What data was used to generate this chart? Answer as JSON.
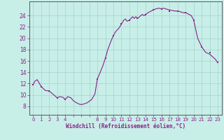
{
  "title": "Windchill (Refroidissement éolien,°C)",
  "bg_color": "#c8eee8",
  "grid_color": "#a8d8d0",
  "line_color": "#882288",
  "marker_color": "#882288",
  "tick_color": "#882288",
  "ylim": [
    6.5,
    26.5
  ],
  "yticks": [
    8,
    10,
    12,
    14,
    16,
    18,
    20,
    22,
    24
  ],
  "xtick_labels": [
    "0",
    "1",
    "2",
    "3",
    "4",
    "",
    "",
    "",
    "8",
    "9",
    "10",
    "11",
    "12",
    "13",
    "14",
    "15",
    "16",
    "17",
    "18",
    "19",
    "20",
    "21",
    "22",
    "23"
  ],
  "detailed_hours": [
    0,
    0.2,
    0.5,
    1,
    1.5,
    2,
    2.5,
    3,
    3.3,
    3.7,
    4,
    4.3,
    4.7,
    5,
    5.3,
    5.7,
    6,
    6.3,
    6.7,
    7,
    7.3,
    7.7,
    8,
    8.3,
    8.7,
    9,
    9.3,
    9.7,
    10,
    10.3,
    10.7,
    11,
    11.3,
    11.5,
    11.7,
    12,
    12.2,
    12.4,
    12.6,
    12.8,
    13,
    13.2,
    13.4,
    13.6,
    13.8,
    14,
    14.3,
    14.7,
    15,
    15.3,
    15.7,
    16,
    16.3,
    16.7,
    17,
    17.3,
    17.7,
    18,
    18.3,
    18.7,
    19,
    19.3,
    19.7,
    20,
    20.5,
    21,
    21.5,
    22,
    22.3,
    22.7,
    23
  ],
  "detailed_values": [
    11.8,
    12.4,
    12.7,
    11.5,
    10.8,
    10.7,
    10.1,
    9.5,
    9.7,
    9.6,
    9.2,
    9.7,
    9.5,
    9.0,
    8.7,
    8.4,
    8.3,
    8.4,
    8.6,
    8.9,
    9.2,
    10.2,
    12.8,
    13.8,
    15.2,
    16.5,
    18.0,
    19.5,
    20.5,
    21.2,
    21.8,
    22.5,
    23.2,
    23.4,
    23.0,
    23.2,
    23.5,
    23.8,
    23.5,
    23.8,
    23.5,
    23.7,
    24.0,
    24.2,
    24.0,
    24.2,
    24.5,
    24.8,
    25.0,
    25.2,
    25.3,
    25.2,
    25.3,
    25.1,
    25.0,
    24.9,
    24.8,
    24.8,
    24.7,
    24.5,
    24.5,
    24.3,
    24.0,
    23.2,
    20.0,
    18.5,
    17.5,
    17.2,
    16.8,
    16.3,
    15.7
  ],
  "marker_hours": [
    0,
    1,
    2,
    3,
    4,
    8,
    9,
    10,
    11,
    12,
    13,
    14,
    15,
    16,
    17,
    18,
    19,
    20,
    21,
    22,
    23
  ],
  "marker_values": [
    11.8,
    11.5,
    10.7,
    9.5,
    9.2,
    12.8,
    16.5,
    20.5,
    22.5,
    23.2,
    23.5,
    24.2,
    25.0,
    25.2,
    24.8,
    24.8,
    24.5,
    23.2,
    18.5,
    17.5,
    15.7
  ]
}
